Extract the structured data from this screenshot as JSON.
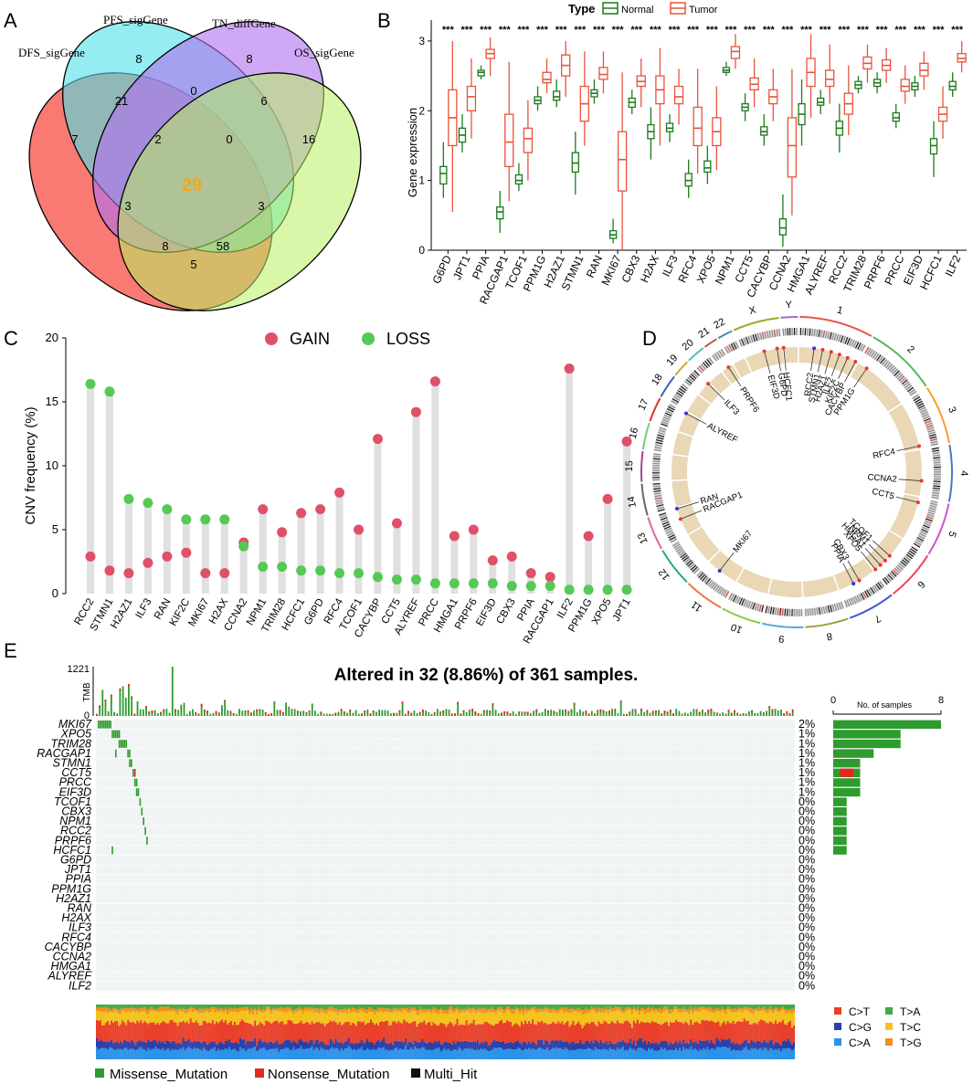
{
  "colors": {
    "normal": "#1b7a1b",
    "tumor": "#e8533a",
    "gain": "#e05069",
    "loss": "#55c955",
    "stem": "#e0e0e0",
    "missense": "#2e9b2e",
    "nonsense": "#e02b1e",
    "venn_dfs": "#f8736b",
    "venn_pfs": "#4fe0e8",
    "venn_tn": "#b070f0",
    "venn_os": "#b8f060",
    "ti_ct": "#e8402a",
    "ti_cg": "#2a3fa8",
    "ti_ca": "#2a92e8",
    "ti_ta": "#44a844",
    "ti_tc": "#f3c21b",
    "ti_tg": "#f2901e"
  },
  "panels": {
    "a": "A",
    "b": "B",
    "c": "C",
    "d": "D",
    "e": "E"
  },
  "chart_data": [
    {
      "type": "venn",
      "panel": "A",
      "sets": [
        "DFS_sigGene",
        "PFS_sigGene",
        "TN_diffGene",
        "OS_sigGene"
      ],
      "regions": {
        "DFS": 7,
        "PFS": 8,
        "TN": 8,
        "OS": 16,
        "DFS_PFS": 21,
        "PFS_TN": 0,
        "TN_OS": 6,
        "DFS_OS": 5,
        "DFS_PFS_TN": 2,
        "PFS_TN_OS": 0,
        "DFS_TN_OS": 8,
        "DFS_PFS_OS": 58,
        "DFS_TN": 3,
        "PFS_OS": 3,
        "ALL": 29
      }
    },
    {
      "type": "boxplot",
      "panel": "B",
      "ylabel": "Gene expression",
      "ylim": [
        0,
        3.3
      ],
      "yticks": [
        "0",
        "1",
        "2",
        "3"
      ],
      "legend_title": "Type",
      "legend": [
        "Normal",
        "Tumor"
      ],
      "significance": "***",
      "categories": [
        "G6PD",
        "JPT1",
        "PPIA",
        "RACGAP1",
        "TCOF1",
        "PPM1G",
        "H2AZ1",
        "STMN1",
        "RAN",
        "MKI67",
        "CBX3",
        "H2AX",
        "ILF3",
        "RFC4",
        "XPO5",
        "NPM1",
        "CCT5",
        "CACYBP",
        "CCNA2",
        "HMGA1",
        "ALYREF",
        "RCC2",
        "TRIM28",
        "PRPF6",
        "PRCC",
        "EIF3D",
        "HCFC1",
        "ILF2"
      ],
      "series": [
        {
          "name": "Normal",
          "stats": [
            [
              0.75,
              0.95,
              1.1,
              1.2,
              1.55
            ],
            [
              1.4,
              1.55,
              1.65,
              1.75,
              1.95
            ],
            [
              2.45,
              2.5,
              2.55,
              2.58,
              2.65
            ],
            [
              0.25,
              0.45,
              0.55,
              0.62,
              0.85
            ],
            [
              0.85,
              0.95,
              1.0,
              1.08,
              1.25
            ],
            [
              2.0,
              2.1,
              2.15,
              2.2,
              2.35
            ],
            [
              2.05,
              2.15,
              2.2,
              2.28,
              2.45
            ],
            [
              0.8,
              1.12,
              1.25,
              1.4,
              1.7
            ],
            [
              2.1,
              2.2,
              2.25,
              2.3,
              2.45
            ],
            [
              0.1,
              0.17,
              0.22,
              0.28,
              0.45
            ],
            [
              1.95,
              2.05,
              2.12,
              2.18,
              2.3
            ],
            [
              1.3,
              1.6,
              1.7,
              1.8,
              2.05
            ],
            [
              1.55,
              1.7,
              1.75,
              1.82,
              1.95
            ],
            [
              0.75,
              0.92,
              1.0,
              1.1,
              1.3
            ],
            [
              0.95,
              1.12,
              1.18,
              1.28,
              1.5
            ],
            [
              2.5,
              2.55,
              2.58,
              2.62,
              2.7
            ],
            [
              1.85,
              2.0,
              2.05,
              2.1,
              2.25
            ],
            [
              1.5,
              1.65,
              1.7,
              1.77,
              1.95
            ],
            [
              0.05,
              0.22,
              0.32,
              0.45,
              0.8
            ],
            [
              1.5,
              1.8,
              1.95,
              2.1,
              2.45
            ],
            [
              1.95,
              2.08,
              2.12,
              2.18,
              2.3
            ],
            [
              1.4,
              1.65,
              1.75,
              1.85,
              2.1
            ],
            [
              2.25,
              2.32,
              2.37,
              2.42,
              2.5
            ],
            [
              2.25,
              2.35,
              2.4,
              2.45,
              2.55
            ],
            [
              1.75,
              1.85,
              1.9,
              1.97,
              2.1
            ],
            [
              2.2,
              2.3,
              2.35,
              2.4,
              2.5
            ],
            [
              1.05,
              1.38,
              1.5,
              1.6,
              1.85
            ],
            [
              2.2,
              2.3,
              2.35,
              2.42,
              2.55
            ]
          ]
        },
        {
          "name": "Tumor",
          "stats": [
            [
              0.55,
              1.5,
              1.9,
              2.3,
              3.0
            ],
            [
              1.6,
              2.0,
              2.2,
              2.35,
              2.75
            ],
            [
              2.5,
              2.75,
              2.82,
              2.88,
              3.05
            ],
            [
              0.7,
              1.2,
              1.55,
              1.95,
              2.7
            ],
            [
              1.0,
              1.4,
              1.6,
              1.75,
              2.15
            ],
            [
              2.25,
              2.4,
              2.45,
              2.55,
              2.75
            ],
            [
              2.2,
              2.5,
              2.65,
              2.8,
              3.0
            ],
            [
              1.5,
              1.85,
              2.1,
              2.35,
              2.85
            ],
            [
              2.25,
              2.45,
              2.52,
              2.62,
              2.85
            ],
            [
              0.0,
              0.85,
              1.3,
              1.7,
              2.55
            ],
            [
              2.05,
              2.35,
              2.42,
              2.5,
              2.75
            ],
            [
              1.5,
              2.1,
              2.3,
              2.5,
              2.9
            ],
            [
              1.8,
              2.1,
              2.2,
              2.35,
              2.6
            ],
            [
              1.1,
              1.5,
              1.75,
              2.05,
              2.6
            ],
            [
              1.15,
              1.5,
              1.7,
              1.9,
              2.35
            ],
            [
              2.6,
              2.75,
              2.85,
              2.92,
              3.1
            ],
            [
              2.05,
              2.3,
              2.38,
              2.47,
              2.75
            ],
            [
              1.85,
              2.1,
              2.2,
              2.3,
              2.6
            ],
            [
              0.5,
              1.05,
              1.5,
              1.9,
              2.6
            ],
            [
              1.9,
              2.35,
              2.55,
              2.75,
              3.1
            ],
            [
              2.1,
              2.35,
              2.45,
              2.58,
              2.95
            ],
            [
              1.65,
              1.95,
              2.1,
              2.25,
              2.65
            ],
            [
              2.4,
              2.6,
              2.68,
              2.77,
              2.95
            ],
            [
              2.4,
              2.58,
              2.65,
              2.73,
              2.9
            ],
            [
              2.1,
              2.28,
              2.35,
              2.45,
              2.65
            ],
            [
              2.3,
              2.5,
              2.58,
              2.68,
              2.85
            ],
            [
              1.6,
              1.85,
              1.95,
              2.05,
              2.35
            ],
            [
              2.55,
              2.7,
              2.75,
              2.82,
              3.0
            ]
          ]
        }
      ]
    },
    {
      "type": "lollipop",
      "panel": "C",
      "ylabel": "CNV frequency (%)",
      "ylim": [
        0,
        20
      ],
      "yticks": [
        "0",
        "5",
        "10",
        "15",
        "20"
      ],
      "legend": [
        "GAIN",
        "LOSS"
      ],
      "categories": [
        "RCC2",
        "STMN1",
        "H2AZ1",
        "ILF3",
        "RAN",
        "KIF2C",
        "MKI67",
        "H2AX",
        "CCNA2",
        "NPM1",
        "TRIM28",
        "HCFC1",
        "G6PD",
        "RFC4",
        "TCOF1",
        "CACYBP",
        "CCT5",
        "ALYREF",
        "PRCC",
        "HMGA1",
        "PRPF6",
        "EIF3D",
        "CBX3",
        "PPIA",
        "RACGAP1",
        "ILF2",
        "PPM1G",
        "XPO5",
        "JPT1"
      ],
      "series": [
        {
          "name": "GAIN",
          "values": [
            2.9,
            1.8,
            1.6,
            2.4,
            2.9,
            3.2,
            1.6,
            1.6,
            4.0,
            6.6,
            4.8,
            6.3,
            6.6,
            7.9,
            5.0,
            12.1,
            5.5,
            14.2,
            16.6,
            4.5,
            5.0,
            2.6,
            2.9,
            1.6,
            1.3,
            17.6,
            4.5,
            7.4,
            11.9
          ]
        },
        {
          "name": "LOSS",
          "values": [
            16.4,
            15.8,
            7.4,
            7.1,
            6.6,
            5.8,
            5.8,
            5.8,
            3.7,
            2.1,
            2.1,
            1.8,
            1.8,
            1.6,
            1.6,
            1.3,
            1.1,
            1.1,
            0.8,
            0.8,
            0.8,
            0.8,
            0.6,
            0.6,
            0.6,
            0.3,
            0.3,
            0.3,
            0.3
          ]
        }
      ]
    },
    {
      "type": "circos",
      "panel": "D",
      "chromosomes": [
        "1",
        "2",
        "3",
        "4",
        "5",
        "6",
        "7",
        "8",
        "9",
        "10",
        "11",
        "12",
        "13",
        "14",
        "15",
        "16",
        "17",
        "18",
        "19",
        "20",
        "21",
        "22",
        "X",
        "Y"
      ],
      "genes": [
        "RCC2",
        "STMN1",
        "ILF2",
        "KIF2C",
        "CACYBP",
        "HCFC1",
        "PPM1G",
        "RFC4",
        "CCNA2",
        "CCT5",
        "TCOF1",
        "NPM1",
        "HMGA1",
        "XPO5",
        "CBX3",
        "PPIA",
        "MKI67",
        "RACGAP1",
        "RAN",
        "ALYREF",
        "ILF3",
        "PRPF6",
        "EIF3D",
        "G6PD",
        "H2AZ1"
      ]
    },
    {
      "type": "oncoplot",
      "panel": "E",
      "title": "Altered in 32 (8.86%) of 361 samples.",
      "tmb_label": "TMB",
      "tmb_max": "1221",
      "tmb_zero": "0",
      "samples_axis": [
        "0",
        "8"
      ],
      "samples_label": "No. of samples",
      "genes": [
        "MKI67",
        "XPO5",
        "TRIM28",
        "RACGAP1",
        "STMN1",
        "CCT5",
        "PRCC",
        "EIF3D",
        "TCOF1",
        "CBX3",
        "NPM1",
        "RCC2",
        "PRPF6",
        "HCFC1",
        "G6PD",
        "JPT1",
        "PPIA",
        "PPM1G",
        "H2AZ1",
        "RAN",
        "H2AX",
        "ILF3",
        "RFC4",
        "CACYBP",
        "CCNA2",
        "HMGA1",
        "ALYREF",
        "ILF2"
      ],
      "percents": [
        "2%",
        "1%",
        "1%",
        "1%",
        "1%",
        "1%",
        "1%",
        "1%",
        "0%",
        "0%",
        "0%",
        "0%",
        "0%",
        "0%",
        "0%",
        "0%",
        "0%",
        "0%",
        "0%",
        "0%",
        "0%",
        "0%",
        "0%",
        "0%",
        "0%",
        "0%",
        "0%",
        "0%"
      ],
      "sample_counts": [
        8,
        5,
        5,
        3,
        2,
        2,
        2,
        2,
        1,
        1,
        1,
        1,
        1,
        1,
        0,
        0,
        0,
        0,
        0,
        0,
        0,
        0,
        0,
        0,
        0,
        0,
        0,
        0
      ],
      "nonsense_counts": [
        0,
        0,
        0,
        0,
        0,
        1,
        0,
        0,
        0,
        0,
        0,
        0,
        0,
        0,
        0,
        0,
        0,
        0,
        0,
        0,
        0,
        0,
        0,
        0,
        0,
        0,
        0,
        0
      ],
      "titv_legend": [
        "C>T",
        "T>A",
        "C>G",
        "T>C",
        "C>A",
        "T>G"
      ],
      "variant_legend": [
        "Missense_Mutation",
        "Nonsense_Mutation",
        "Multi_Hit"
      ]
    }
  ]
}
